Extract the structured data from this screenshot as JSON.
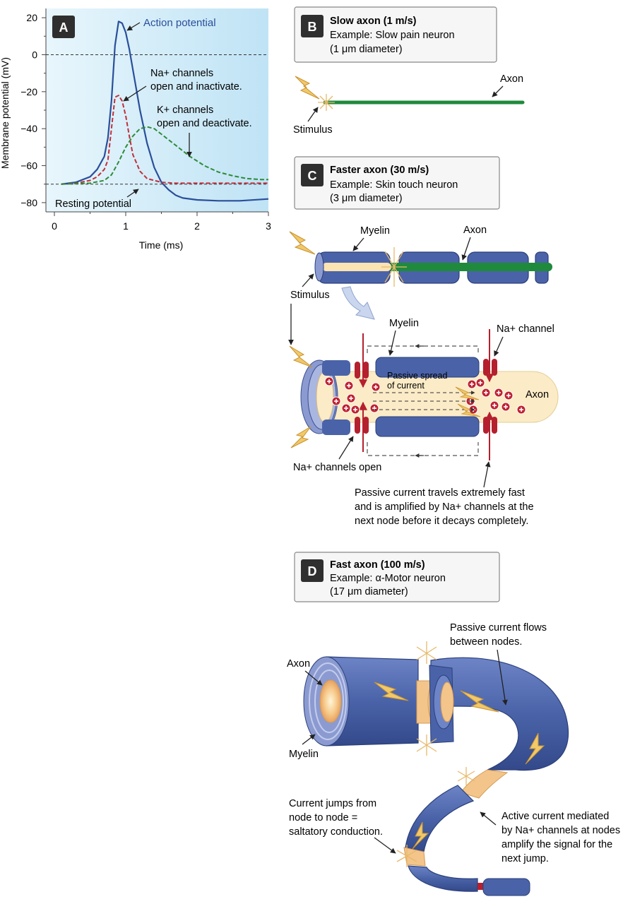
{
  "chart_data": {
    "type": "line",
    "xlabel": "Time (ms)",
    "ylabel": "Membrane potential (mV)",
    "xlim": [
      0,
      3
    ],
    "ylim": [
      -85,
      25
    ],
    "x_ticks": [
      "0",
      "1",
      "2",
      "3"
    ],
    "y_ticks": [
      "20",
      "0",
      "−20",
      "−40",
      "−60",
      "−80"
    ],
    "reference_lines": [
      0,
      -70
    ],
    "background": "#d6eef9",
    "series": [
      {
        "name": "Action potential",
        "color": "#2a4f9a",
        "style": "solid",
        "x": [
          0.1,
          0.3,
          0.5,
          0.6,
          0.7,
          0.75,
          0.8,
          0.85,
          0.9,
          0.95,
          1.0,
          1.05,
          1.1,
          1.2,
          1.3,
          1.4,
          1.5,
          1.6,
          1.7,
          1.8,
          2.0,
          2.3,
          2.6,
          3.0
        ],
        "y": [
          -70,
          -69,
          -66,
          -62,
          -55,
          -45,
          -25,
          5,
          18,
          17,
          12,
          3,
          -8,
          -30,
          -48,
          -61,
          -69,
          -73,
          -76,
          -77.5,
          -78.5,
          -79,
          -79,
          -78
        ]
      },
      {
        "name": "Na+ channels",
        "color": "#c0303a",
        "style": "dashed",
        "x": [
          0.1,
          0.3,
          0.5,
          0.6,
          0.7,
          0.75,
          0.8,
          0.85,
          0.9,
          0.95,
          1.0,
          1.05,
          1.1,
          1.2,
          1.3,
          1.5,
          1.7,
          2.0,
          2.5,
          3.0
        ],
        "y": [
          -70,
          -69.5,
          -68,
          -66,
          -62,
          -57,
          -40,
          -23,
          -22,
          -25,
          -33,
          -44,
          -54,
          -63,
          -67,
          -69,
          -69.5,
          -69.5,
          -69.5,
          -69.5
        ]
      },
      {
        "name": "K+ channels",
        "color": "#2e8b3a",
        "style": "dashed",
        "x": [
          0.1,
          0.5,
          0.7,
          0.8,
          0.9,
          1.0,
          1.1,
          1.2,
          1.3,
          1.4,
          1.5,
          1.7,
          1.9,
          2.1,
          2.3,
          2.5,
          2.7,
          2.9,
          3.0
        ],
        "y": [
          -70,
          -69.5,
          -68,
          -65,
          -58,
          -50,
          -44,
          -40,
          -39,
          -40,
          -43,
          -49,
          -55,
          -60,
          -63.5,
          -65.5,
          -67,
          -67.5,
          -67.5
        ]
      }
    ]
  },
  "panels": {
    "a": {
      "letter": "A",
      "action_label": "Action potential",
      "na_label_1": "Na+ channels",
      "na_label_2": "open and inactivate.",
      "k_label_1": "K+ channels",
      "k_label_2": "open and deactivate.",
      "resting_label": "Resting potential"
    },
    "b": {
      "letter": "B",
      "title": "Slow axon (1 m/s)",
      "line1": "Example: Slow pain neuron",
      "line2": "(1 μm diameter)",
      "axon_label": "Axon",
      "stimulus_label": "Stimulus"
    },
    "c": {
      "letter": "C",
      "title": "Faster axon (30 m/s)",
      "line1": "Example: Skin touch neuron",
      "line2": "(3 μm diameter)",
      "myelin_label": "Myelin",
      "axon_label": "Axon",
      "stimulus_label": "Stimulus",
      "zoom_myelin": "Myelin",
      "na_channel": "Na+ channel",
      "passive_1": "Passive spread",
      "passive_2": "of current",
      "zoom_axon": "Axon",
      "na_open": "Na+ channels open",
      "caption_1": "Passive current travels extremely fast",
      "caption_2": "and is amplified by Na+ channels at the",
      "caption_3": "next node before it decays completely."
    },
    "d": {
      "letter": "D",
      "title": "Fast axon (100 m/s)",
      "line1": "Example: α-Motor neuron",
      "line2": "(17 μm diameter)",
      "axon_label": "Axon",
      "myelin_label": "Myelin",
      "passive_1": "Passive current flows",
      "passive_2": "between nodes.",
      "jump_1": "Current jumps from",
      "jump_2": "node to node =",
      "jump_3": "saltatory conduction.",
      "active_1": "Active current mediated",
      "active_2": "by Na+ channels at nodes",
      "active_3": "amplify the signal for the",
      "active_4": "next jump."
    }
  },
  "colors": {
    "myelin": "#4a63a8",
    "axon_green": "#1f8a3c",
    "na_red": "#b5202e",
    "spark": "#f1c86a",
    "axoplasm": "#fbebc7"
  }
}
